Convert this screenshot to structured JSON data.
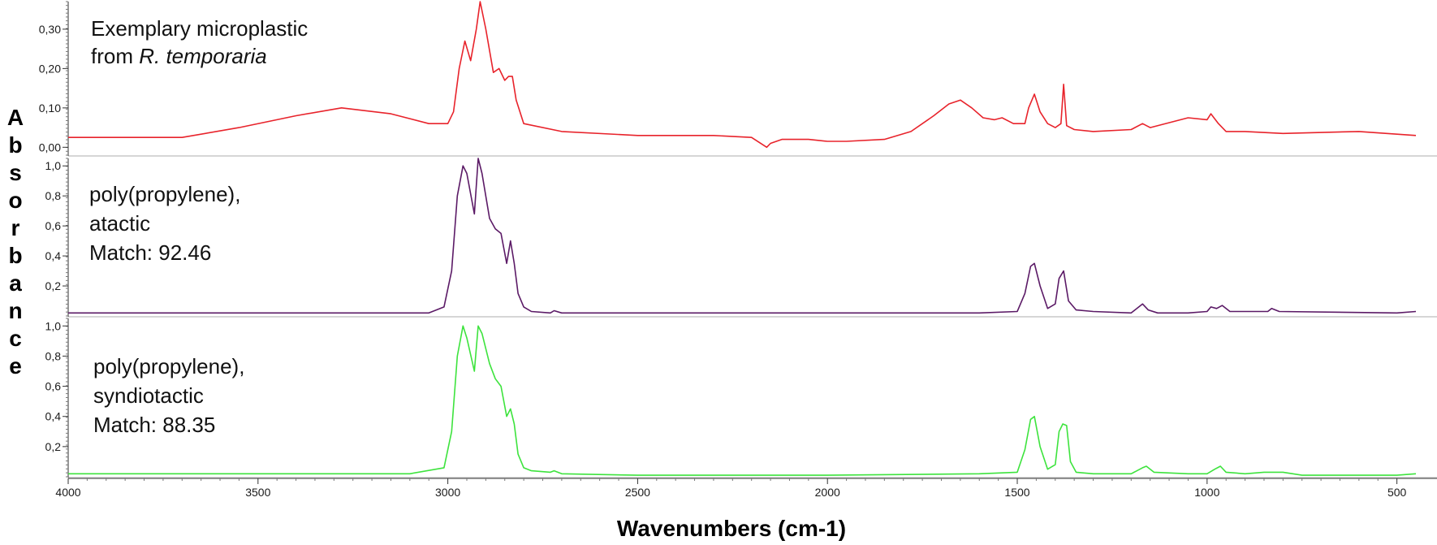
{
  "chart_data": {
    "type": "line",
    "xlabel": "Wavenumbers (cm-1)",
    "ylabel": "Absorbance",
    "x_ticks": [
      "4000",
      "3500",
      "3000",
      "2500",
      "2000",
      "1500",
      "1000",
      "500"
    ],
    "xlim": [
      4000,
      450
    ],
    "panels": [
      {
        "name": "Exemplary microplastic from R. temporaria",
        "label_lines": [
          "Exemplary microplastic",
          "from "
        ],
        "label_italic": "R. temporaria",
        "color": "#e8232b",
        "ylim": [
          -0.02,
          0.37
        ],
        "y_ticks": [
          "0,00",
          "0,10",
          "0,20",
          "0,30"
        ],
        "y_tick_values": [
          0.0,
          0.1,
          0.2,
          0.3
        ],
        "x": [
          4000,
          3700,
          3550,
          3400,
          3280,
          3150,
          3050,
          3000,
          2985,
          2970,
          2955,
          2940,
          2925,
          2915,
          2900,
          2880,
          2865,
          2850,
          2840,
          2830,
          2820,
          2800,
          2700,
          2500,
          2300,
          2200,
          2160,
          2150,
          2120,
          2050,
          2000,
          1950,
          1850,
          1780,
          1720,
          1680,
          1650,
          1620,
          1590,
          1560,
          1540,
          1510,
          1480,
          1470,
          1455,
          1440,
          1420,
          1400,
          1385,
          1378,
          1370,
          1350,
          1300,
          1200,
          1170,
          1150,
          1050,
          1000,
          990,
          970,
          950,
          900,
          800,
          600,
          450
        ],
        "y": [
          0.025,
          0.025,
          0.05,
          0.08,
          0.1,
          0.085,
          0.06,
          0.06,
          0.09,
          0.2,
          0.27,
          0.22,
          0.3,
          0.37,
          0.3,
          0.19,
          0.2,
          0.17,
          0.18,
          0.18,
          0.12,
          0.06,
          0.04,
          0.03,
          0.03,
          0.025,
          0.0,
          0.01,
          0.02,
          0.02,
          0.015,
          0.015,
          0.02,
          0.04,
          0.08,
          0.11,
          0.12,
          0.1,
          0.075,
          0.07,
          0.075,
          0.06,
          0.06,
          0.1,
          0.135,
          0.09,
          0.06,
          0.05,
          0.06,
          0.16,
          0.055,
          0.045,
          0.04,
          0.045,
          0.06,
          0.05,
          0.075,
          0.07,
          0.085,
          0.06,
          0.04,
          0.04,
          0.035,
          0.04,
          0.03
        ]
      },
      {
        "name": "poly(propylene), atactic",
        "label_lines": [
          "poly(propylene),",
          "atactic",
          "Match: 92.46"
        ],
        "color": "#5b1a66",
        "ylim": [
          0.0,
          1.05
        ],
        "y_ticks": [
          "0,2",
          "0,4",
          "0,6",
          "0,8",
          "1,0"
        ],
        "y_tick_values": [
          0.2,
          0.4,
          0.6,
          0.8,
          1.0
        ],
        "x": [
          4000,
          3050,
          3010,
          2990,
          2975,
          2960,
          2950,
          2930,
          2920,
          2910,
          2890,
          2875,
          2860,
          2845,
          2835,
          2825,
          2815,
          2800,
          2780,
          2730,
          2720,
          2700,
          2500,
          2000,
          1600,
          1500,
          1480,
          1465,
          1455,
          1440,
          1420,
          1400,
          1390,
          1378,
          1365,
          1345,
          1300,
          1200,
          1170,
          1155,
          1130,
          1050,
          1000,
          990,
          975,
          960,
          940,
          900,
          840,
          830,
          810,
          500,
          450
        ],
        "y": [
          0.02,
          0.02,
          0.06,
          0.3,
          0.8,
          1.0,
          0.95,
          0.68,
          1.05,
          0.95,
          0.65,
          0.58,
          0.55,
          0.35,
          0.5,
          0.35,
          0.15,
          0.06,
          0.03,
          0.02,
          0.035,
          0.02,
          0.02,
          0.02,
          0.02,
          0.03,
          0.15,
          0.33,
          0.35,
          0.2,
          0.05,
          0.08,
          0.25,
          0.3,
          0.1,
          0.04,
          0.03,
          0.02,
          0.08,
          0.04,
          0.02,
          0.02,
          0.03,
          0.06,
          0.05,
          0.07,
          0.03,
          0.03,
          0.03,
          0.05,
          0.03,
          0.02,
          0.03
        ]
      },
      {
        "name": "poly(propylene), syndiotactic",
        "label_lines": [
          "poly(propylene),",
          "syndiotactic",
          "Match: 88.35"
        ],
        "color": "#3de33d",
        "ylim": [
          0.0,
          1.05
        ],
        "y_ticks": [
          "0,2",
          "0,4",
          "0,6",
          "0,8",
          "1,0"
        ],
        "y_tick_values": [
          0.2,
          0.4,
          0.6,
          0.8,
          1.0
        ],
        "x": [
          4000,
          3100,
          3010,
          2990,
          2975,
          2960,
          2950,
          2930,
          2920,
          2910,
          2890,
          2875,
          2860,
          2845,
          2835,
          2825,
          2815,
          2800,
          2780,
          2730,
          2720,
          2700,
          2500,
          2000,
          1600,
          1500,
          1480,
          1465,
          1455,
          1440,
          1420,
          1400,
          1390,
          1380,
          1370,
          1360,
          1345,
          1300,
          1200,
          1170,
          1160,
          1140,
          1050,
          1000,
          980,
          965,
          950,
          900,
          850,
          800,
          750,
          500,
          450
        ],
        "y": [
          0.02,
          0.02,
          0.06,
          0.3,
          0.8,
          1.0,
          0.92,
          0.7,
          1.0,
          0.95,
          0.75,
          0.65,
          0.6,
          0.4,
          0.45,
          0.35,
          0.15,
          0.06,
          0.04,
          0.03,
          0.04,
          0.02,
          0.01,
          0.01,
          0.02,
          0.03,
          0.18,
          0.38,
          0.4,
          0.2,
          0.05,
          0.08,
          0.3,
          0.35,
          0.34,
          0.1,
          0.03,
          0.02,
          0.02,
          0.06,
          0.07,
          0.03,
          0.02,
          0.02,
          0.05,
          0.07,
          0.03,
          0.02,
          0.03,
          0.03,
          0.01,
          0.01,
          0.02
        ]
      }
    ]
  }
}
